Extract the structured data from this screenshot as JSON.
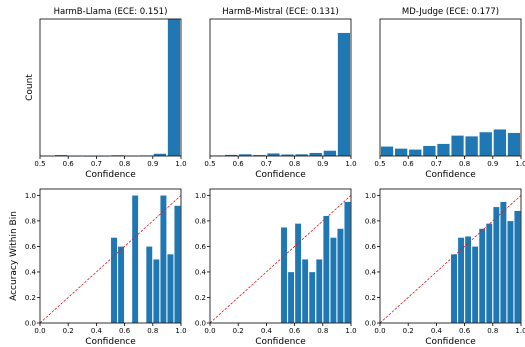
{
  "chart_data": [
    {
      "type": "bar",
      "title": "HarmB-Llama (ECE: 0.151)",
      "xlabel": "Confidence",
      "ylabel": "Count",
      "xlim": [
        0.5,
        1.0
      ],
      "xticks": [
        "0.5",
        "0.6",
        "0.7",
        "0.8",
        "0.9",
        "1.0"
      ],
      "yticks": [],
      "ymax": 1000,
      "color": "#1f77b4",
      "bins": [
        0.525,
        0.575,
        0.625,
        0.675,
        0.725,
        0.775,
        0.825,
        0.875,
        0.925,
        0.975
      ],
      "values": [
        3,
        8,
        2,
        1,
        2,
        7,
        3,
        4,
        18,
        1000
      ]
    },
    {
      "type": "bar",
      "title": "HarmB-Mistral (ECE: 0.131)",
      "xlabel": "Confidence",
      "ylabel": "",
      "xlim": [
        0.5,
        1.0
      ],
      "xticks": [
        "0.5",
        "0.6",
        "0.7",
        "0.8",
        "0.9",
        "1.0"
      ],
      "yticks": [],
      "ymax": 1000,
      "color": "#1f77b4",
      "bins": [
        0.525,
        0.575,
        0.625,
        0.675,
        0.725,
        0.775,
        0.825,
        0.875,
        0.925,
        0.975
      ],
      "values": [
        4,
        10,
        14,
        8,
        20,
        12,
        14,
        24,
        40,
        900
      ]
    },
    {
      "type": "bar",
      "title": "MD-Judge (ECE: 0.177)",
      "xlabel": "Confidence",
      "ylabel": "",
      "xlim": [
        0.5,
        1.0
      ],
      "xticks": [
        "0.5",
        "0.6",
        "0.7",
        "0.8",
        "0.9",
        "1.0"
      ],
      "yticks": [],
      "ymax": 1000,
      "color": "#1f77b4",
      "bins": [
        0.525,
        0.575,
        0.625,
        0.675,
        0.725,
        0.775,
        0.825,
        0.875,
        0.925,
        0.975
      ],
      "values": [
        70,
        55,
        48,
        75,
        90,
        150,
        145,
        175,
        195,
        170
      ]
    },
    {
      "type": "bar",
      "title": "",
      "xlabel": "Confidence",
      "ylabel": "Accuracy Within Bin",
      "xlim": [
        0.0,
        1.0
      ],
      "ylim": [
        0.0,
        1.05
      ],
      "xticks": [
        "0.0",
        "0.2",
        "0.4",
        "0.6",
        "0.8",
        "1.0"
      ],
      "yticks": [
        "0.0",
        "0.2",
        "0.4",
        "0.6",
        "0.8",
        "1.0"
      ],
      "diagonal": true,
      "color": "#1f77b4",
      "bins": [
        0.525,
        0.575,
        0.625,
        0.675,
        0.725,
        0.775,
        0.825,
        0.875,
        0.925,
        0.975
      ],
      "values": [
        0.67,
        0.6,
        0.0,
        1.0,
        0.0,
        0.6,
        0.5,
        1.0,
        0.54,
        0.92
      ]
    },
    {
      "type": "bar",
      "title": "",
      "xlabel": "Confidence",
      "ylabel": "",
      "xlim": [
        0.0,
        1.0
      ],
      "ylim": [
        0.0,
        1.05
      ],
      "xticks": [
        "0.0",
        "0.2",
        "0.4",
        "0.6",
        "0.8",
        "1.0"
      ],
      "yticks": [
        "0.0",
        "0.2",
        "0.4",
        "0.6",
        "0.8",
        "1.0"
      ],
      "diagonal": true,
      "color": "#1f77b4",
      "bins": [
        0.525,
        0.575,
        0.625,
        0.675,
        0.725,
        0.775,
        0.825,
        0.875,
        0.925,
        0.975
      ],
      "values": [
        0.75,
        0.4,
        0.78,
        0.5,
        0.4,
        0.5,
        0.84,
        0.67,
        0.74,
        0.95
      ]
    },
    {
      "type": "bar",
      "title": "",
      "xlabel": "Confidence",
      "ylabel": "",
      "xlim": [
        0.0,
        1.0
      ],
      "ylim": [
        0.0,
        1.05
      ],
      "xticks": [
        "0.0",
        "0.2",
        "0.4",
        "0.6",
        "0.8",
        "1.0"
      ],
      "yticks": [
        "0.0",
        "0.2",
        "0.4",
        "0.6",
        "0.8",
        "1.0"
      ],
      "diagonal": true,
      "color": "#1f77b4",
      "bins": [
        0.525,
        0.575,
        0.625,
        0.675,
        0.725,
        0.775,
        0.825,
        0.875,
        0.925,
        0.975
      ],
      "values": [
        0.54,
        0.67,
        0.68,
        0.6,
        0.74,
        0.78,
        0.91,
        0.95,
        0.8,
        0.88
      ]
    }
  ]
}
